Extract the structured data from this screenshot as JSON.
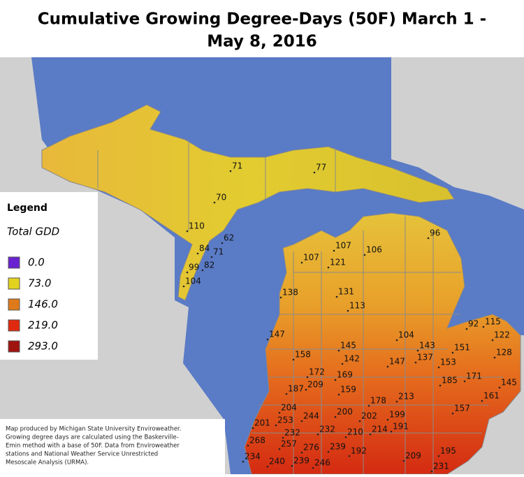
{
  "title": [
    "Cumulative Growing Degree-Days (50F) March 1 -",
    "May 8, 2016"
  ],
  "legend": {
    "title": "Legend",
    "subtitle": "Total GDD",
    "items": [
      {
        "label": "0.0",
        "color": "#6a22d0"
      },
      {
        "label": "73.0",
        "color": "#e2d21e"
      },
      {
        "label": "146.0",
        "color": "#df7a1a"
      },
      {
        "label": "219.0",
        "color": "#e02a10"
      },
      {
        "label": "293.0",
        "color": "#a01410"
      }
    ]
  },
  "stations": [
    "71",
    "77",
    "70",
    "110",
    "62",
    "84",
    "71",
    "99",
    "82",
    "104",
    "96",
    "107",
    "106",
    "107",
    "121",
    "138",
    "131",
    "113",
    "147",
    "104",
    "92",
    "115",
    "122",
    "143",
    "151",
    "145",
    "158",
    "142",
    "147",
    "137",
    "153",
    "128",
    "172",
    "169",
    "185",
    "171",
    "145",
    "187",
    "209",
    "159",
    "161",
    "178",
    "213",
    "157",
    "204",
    "200",
    "202",
    "199",
    "201",
    "253",
    "244",
    "191",
    "232",
    "232",
    "210",
    "214",
    "268",
    "257",
    "276",
    "239",
    "192",
    "195",
    "234",
    "240",
    "239",
    "246",
    "209",
    "231"
  ],
  "note": [
    "Map produced by Michigan State University Enviroweather.",
    "Growing degree days are calculated using the Baskerville-",
    "Emin method with a base of 50F.  Data from Enviroweather",
    "stations and National Weather Service Unrestricted",
    "Mesoscale Analysis (URMA)."
  ]
}
